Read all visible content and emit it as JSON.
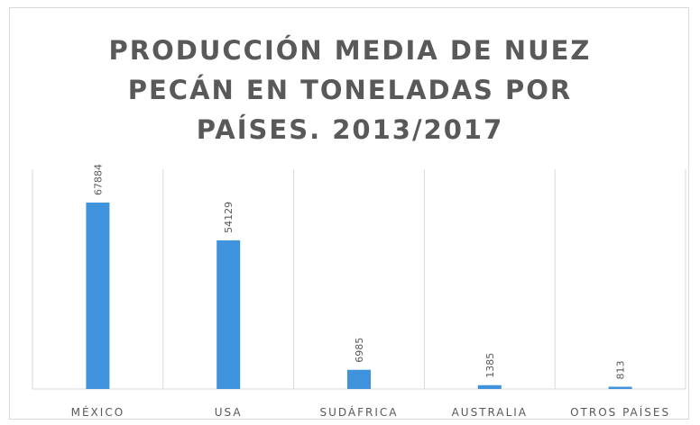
{
  "chart_data": {
    "type": "bar",
    "title": "PRODUCCIÓN MEDIA DE NUEZ PECÁN EN TONELADAS POR PAÍSES. 2013/2017",
    "categories": [
      "MÉXICO",
      "USA",
      "SUDÁFRICA",
      "AUSTRALIA",
      "OTROS PAÍSES"
    ],
    "values": [
      67884,
      54129,
      6985,
      1385,
      813
    ],
    "color": "#3f93dd",
    "ylim": [
      0,
      80000
    ],
    "grid": true
  }
}
